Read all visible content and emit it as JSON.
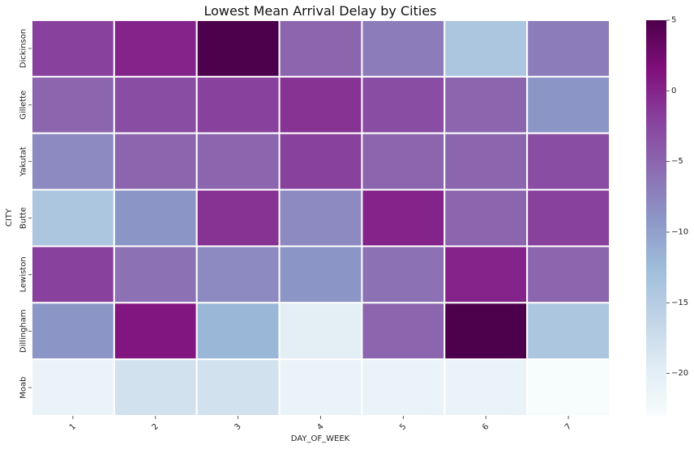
{
  "chart_data": {
    "type": "heatmap",
    "title": "Lowest Mean Arrival Delay by Cities",
    "xlabel": "DAY_OF_WEEK",
    "ylabel": "CITY",
    "x_categories": [
      "1",
      "2",
      "3",
      "4",
      "5",
      "6",
      "7"
    ],
    "y_categories": [
      "Dickinson",
      "Gillette",
      "Yakutat",
      "Butte",
      "Lewiston",
      "Dillingham",
      "Moab"
    ],
    "values": [
      [
        -2,
        0,
        5,
        -5,
        -7,
        -14,
        -7
      ],
      [
        -5,
        -3,
        -2,
        -1,
        -3,
        -5,
        -9
      ],
      [
        -8,
        -5,
        -5,
        -2,
        -5,
        -5,
        -3
      ],
      [
        -14,
        -9,
        -1,
        -8,
        0,
        -5,
        -2
      ],
      [
        -2,
        -6,
        -8,
        -9,
        -6,
        0,
        -5
      ],
      [
        -9,
        1,
        -12,
        -20,
        -5,
        5,
        -14
      ],
      [
        -21,
        -18,
        -18,
        -21,
        -21,
        -21,
        -23
      ]
    ],
    "colorbar": {
      "colormap": "BuPu",
      "vmin": -23,
      "vmax": 5,
      "ticks": [
        5,
        0,
        -5,
        -10,
        -15,
        -20
      ],
      "tick_labels": [
        "5",
        "0",
        "−5",
        "−10",
        "−15",
        "−20"
      ]
    },
    "grid": true,
    "grid_color": "#ffffff"
  }
}
